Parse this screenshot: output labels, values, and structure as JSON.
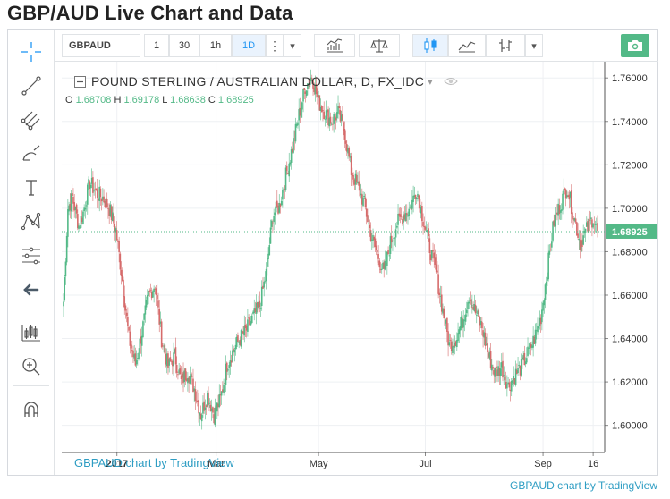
{
  "heading": "GBP/AUD Live Chart and Data",
  "toolbar": {
    "symbol": "GBPAUD",
    "intervals": [
      "1",
      "30",
      "1h",
      "1D"
    ],
    "active_interval": "1D",
    "more_glyph": "⋮",
    "dropdown_glyph": "▾"
  },
  "left_tools": [
    "crosshair-icon",
    "trend-line-icon",
    "pitchfork-icon",
    "brush-icon",
    "text-icon",
    "pattern-icon",
    "measure-icon",
    "back-arrow-icon",
    "long-position-icon",
    "zoom-in-icon",
    "magnet-icon"
  ],
  "legend": {
    "title": "POUND STERLING / AUSTRALIAN DOLLAR, D, FX_IDC",
    "o_label": "O",
    "o_value": "1.68708",
    "h_label": "H",
    "h_value": "1.69178",
    "l_label": "L",
    "l_value": "1.68638",
    "c_label": "C",
    "c_value": "1.68925"
  },
  "watermark": "GBPAUD chart by TradingView",
  "footer_credit": "GBPAUD chart by TradingView",
  "colors": {
    "up": "#53b987",
    "down": "#d66b6b",
    "grid": "#eef0f3",
    "last_price_badge": "#53b987",
    "accent": "#2196f3"
  },
  "chart_data": {
    "type": "candlestick",
    "symbol": "GBPAUD",
    "timeframe": "D",
    "x_tick_labels": [
      "2017",
      "Mar",
      "May",
      "Jul",
      "Sep",
      "16"
    ],
    "y_tick_labels": [
      "1.60000",
      "1.62000",
      "1.64000",
      "1.66000",
      "1.68000",
      "1.70000",
      "1.72000",
      "1.74000",
      "1.76000"
    ],
    "ylim": [
      1.5875,
      1.7675
    ],
    "last_price": "1.68925",
    "grid": true,
    "key_points": [
      [
        0,
        1.657
      ],
      [
        4,
        1.7
      ],
      [
        8,
        1.705
      ],
      [
        14,
        1.692
      ],
      [
        18,
        1.698
      ],
      [
        24,
        1.712
      ],
      [
        30,
        1.707
      ],
      [
        36,
        1.705
      ],
      [
        42,
        1.7
      ],
      [
        48,
        1.69
      ],
      [
        54,
        1.667
      ],
      [
        60,
        1.64
      ],
      [
        66,
        1.628
      ],
      [
        72,
        1.643
      ],
      [
        78,
        1.66
      ],
      [
        84,
        1.665
      ],
      [
        90,
        1.64
      ],
      [
        96,
        1.627
      ],
      [
        102,
        1.632
      ],
      [
        108,
        1.62
      ],
      [
        114,
        1.625
      ],
      [
        120,
        1.617
      ],
      [
        126,
        1.605
      ],
      [
        132,
        1.614
      ],
      [
        138,
        1.605
      ],
      [
        144,
        1.612
      ],
      [
        150,
        1.628
      ],
      [
        156,
        1.635
      ],
      [
        162,
        1.64
      ],
      [
        168,
        1.644
      ],
      [
        174,
        1.65
      ],
      [
        180,
        1.655
      ],
      [
        186,
        1.67
      ],
      [
        192,
        1.697
      ],
      [
        198,
        1.701
      ],
      [
        204,
        1.715
      ],
      [
        210,
        1.728
      ],
      [
        216,
        1.743
      ],
      [
        222,
        1.756
      ],
      [
        228,
        1.761
      ],
      [
        234,
        1.749
      ],
      [
        240,
        1.744
      ],
      [
        246,
        1.74
      ],
      [
        252,
        1.744
      ],
      [
        258,
        1.735
      ],
      [
        264,
        1.717
      ],
      [
        270,
        1.71
      ],
      [
        276,
        1.702
      ],
      [
        282,
        1.688
      ],
      [
        288,
        1.679
      ],
      [
        294,
        1.67
      ],
      [
        300,
        1.684
      ],
      [
        306,
        1.693
      ],
      [
        312,
        1.697
      ],
      [
        318,
        1.7
      ],
      [
        324,
        1.709
      ],
      [
        330,
        1.695
      ],
      [
        336,
        1.682
      ],
      [
        342,
        1.67
      ],
      [
        348,
        1.653
      ],
      [
        354,
        1.637
      ],
      [
        360,
        1.64
      ],
      [
        366,
        1.648
      ],
      [
        372,
        1.66
      ],
      [
        378,
        1.652
      ],
      [
        384,
        1.645
      ],
      [
        390,
        1.632
      ],
      [
        396,
        1.624
      ],
      [
        402,
        1.627
      ],
      [
        408,
        1.618
      ],
      [
        414,
        1.623
      ],
      [
        420,
        1.627
      ],
      [
        426,
        1.633
      ],
      [
        432,
        1.64
      ],
      [
        438,
        1.65
      ],
      [
        444,
        1.672
      ],
      [
        450,
        1.694
      ],
      [
        456,
        1.702
      ],
      [
        462,
        1.71
      ],
      [
        468,
        1.697
      ],
      [
        474,
        1.684
      ],
      [
        480,
        1.69
      ],
      [
        486,
        1.696
      ],
      [
        490,
        1.689
      ]
    ]
  }
}
